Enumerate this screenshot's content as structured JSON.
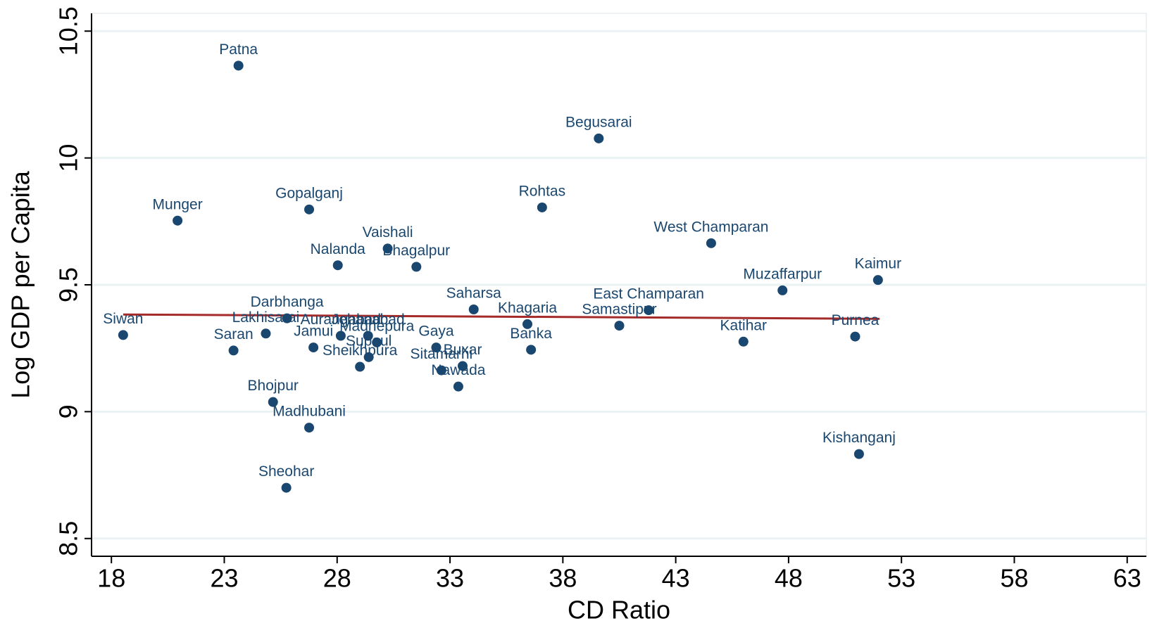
{
  "chart_data": {
    "type": "scatter",
    "x_label": "CD Ratio",
    "y_label": "Log GDP per Capita",
    "xlim": [
      17.12,
      63.85
    ],
    "ylim": [
      8.43,
      10.57
    ],
    "xticks": [
      18,
      23,
      28,
      33,
      38,
      43,
      48,
      53,
      58,
      63
    ],
    "yticks": [
      8.5,
      9,
      9.5,
      10,
      10.5
    ],
    "grid": true,
    "color": "#1a476f",
    "labels": [
      "Patna",
      "Begusarai",
      "Munger",
      "Gopalganj",
      "Rohtas",
      "Vaishali",
      "Nalanda",
      "Bhagalpur",
      "West Champaran",
      "Kaimur",
      "Muzaffarpur",
      "Saharsa",
      "East Champaran",
      "Darbhanga",
      "Khagaria",
      "Samastipur",
      "Siwan",
      "Lakhisarai",
      "Aurangabad",
      "Jehanabad",
      "Madhepura",
      "Supaul",
      "Sheikhpura",
      "Purnea",
      "Katihar",
      "Saran",
      "Jamui",
      "Gaya",
      "Banka",
      "Buxar",
      "Sitamarhi",
      "Nawada",
      "Bhojpur",
      "Madhubani",
      "Sheohar",
      "Kishanganj"
    ],
    "x": [
      23.63,
      39.59,
      20.93,
      26.76,
      37.08,
      30.24,
      28.03,
      31.51,
      44.57,
      51.96,
      47.73,
      34.05,
      41.8,
      25.78,
      36.43,
      40.5,
      18.52,
      24.84,
      28.16,
      29.37,
      29.76,
      29.4,
      29.01,
      50.95,
      46.0,
      23.41,
      26.95,
      32.39,
      36.59,
      33.56,
      32.62,
      33.37,
      25.16,
      26.76,
      25.75,
      51.12
    ],
    "y": [
      10.364,
      10.077,
      9.753,
      9.797,
      9.805,
      9.643,
      9.577,
      9.571,
      9.664,
      9.519,
      9.478,
      9.403,
      9.4,
      9.368,
      9.345,
      9.339,
      9.302,
      9.308,
      9.299,
      9.299,
      9.273,
      9.215,
      9.177,
      9.296,
      9.276,
      9.241,
      9.253,
      9.253,
      9.244,
      9.18,
      9.163,
      9.099,
      9.038,
      8.937,
      8.7,
      8.833
    ],
    "fit_line": {
      "x": [
        18.52,
        52.03
      ],
      "y": [
        9.383,
        9.366
      ],
      "color": "#a52a2a"
    }
  }
}
